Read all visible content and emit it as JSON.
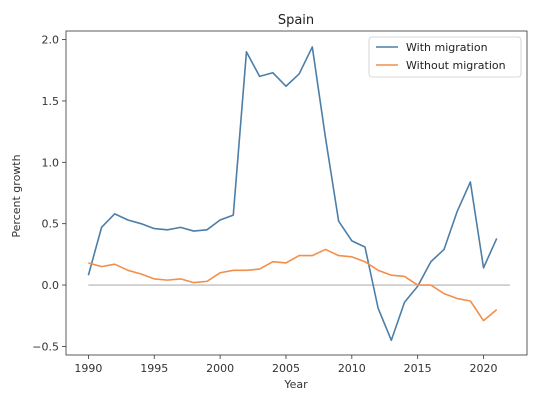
{
  "chart_data": {
    "type": "line",
    "title": "Spain",
    "xlabel": "Year",
    "ylabel": "Percent growth",
    "xlim": [
      1988.3,
      2023.3
    ],
    "ylim": [
      -0.57,
      2.07
    ],
    "x_ticks": [
      1990,
      1995,
      2000,
      2005,
      2010,
      2015,
      2020
    ],
    "y_ticks": [
      -0.5,
      0.0,
      0.5,
      1.0,
      1.5,
      2.0
    ],
    "x_tick_labels": [
      "1990",
      "1995",
      "2000",
      "2005",
      "2010",
      "2015",
      "2020"
    ],
    "y_tick_labels": [
      "−0.5",
      "0.0",
      "0.5",
      "1.0",
      "1.5",
      "2.0"
    ],
    "reference_line": {
      "y": 0,
      "x_from": 1990,
      "x_to": 2022,
      "color": "#b0b0b0"
    },
    "legend_position": "top-right",
    "x": [
      1990,
      1991,
      1992,
      1993,
      1994,
      1995,
      1996,
      1997,
      1998,
      1999,
      2000,
      2001,
      2002,
      2003,
      2004,
      2005,
      2006,
      2007,
      2008,
      2009,
      2010,
      2011,
      2012,
      2013,
      2014,
      2015,
      2016,
      2017,
      2018,
      2019,
      2020,
      2021
    ],
    "series": [
      {
        "name": "With migration",
        "color": "#4c7ea8",
        "values": [
          0.08,
          0.47,
          0.58,
          0.53,
          0.5,
          0.46,
          0.45,
          0.47,
          0.44,
          0.45,
          0.53,
          0.57,
          1.9,
          1.7,
          1.73,
          1.62,
          1.72,
          1.94,
          1.2,
          0.52,
          0.36,
          0.31,
          -0.19,
          -0.45,
          -0.14,
          -0.01,
          0.19,
          0.29,
          0.6,
          0.84,
          0.14,
          0.38
        ]
      },
      {
        "name": "Without migration",
        "color": "#f28f4a",
        "values": [
          0.18,
          0.15,
          0.17,
          0.12,
          0.09,
          0.05,
          0.04,
          0.05,
          0.02,
          0.03,
          0.1,
          0.12,
          0.12,
          0.13,
          0.19,
          0.18,
          0.24,
          0.24,
          0.29,
          0.24,
          0.23,
          0.19,
          0.12,
          0.08,
          0.07,
          0.0,
          0.0,
          -0.07,
          -0.11,
          -0.13,
          -0.29,
          -0.2
        ]
      }
    ]
  }
}
